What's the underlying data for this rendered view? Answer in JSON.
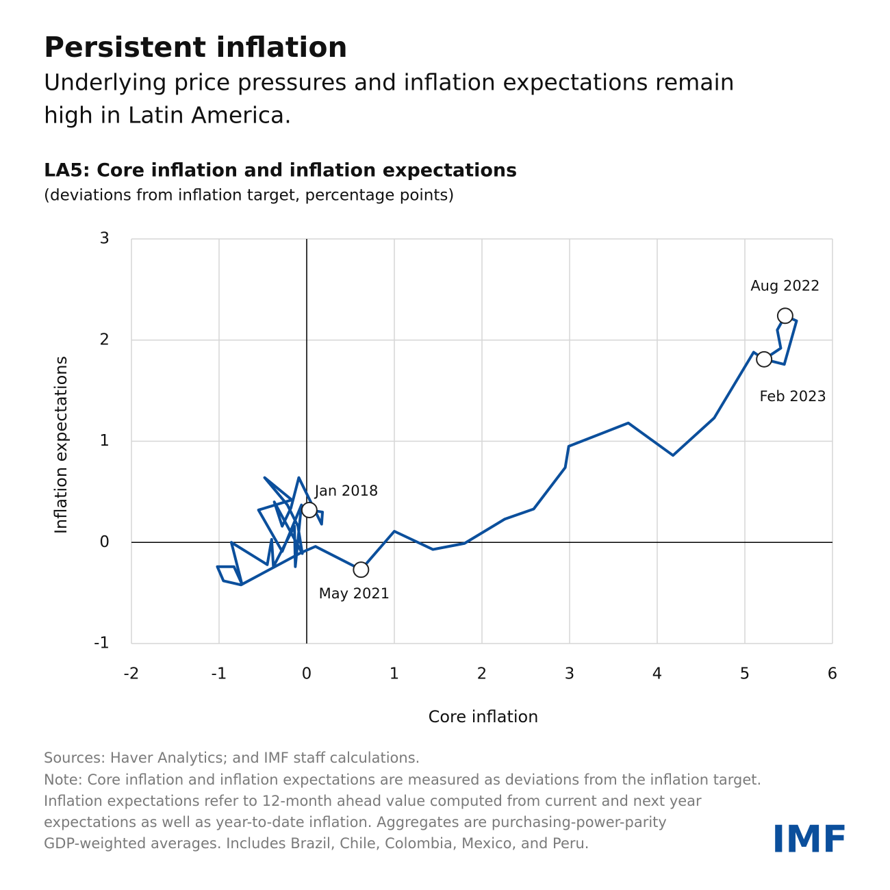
{
  "header": {
    "title": "Persistent inflation",
    "subtitle": [
      "Underlying price pressures and inflation expectations remain",
      "high in Latin America."
    ]
  },
  "chart_data": {
    "type": "line",
    "title": "LA5: Core inflation and inflation expectations",
    "subtitle": "(deviations from inflation target, percentage points)",
    "x_label": "Core inflation",
    "y_label": "Inflation expectations",
    "color": "#0b4f9c",
    "grid": true,
    "xlim": [
      -2,
      6
    ],
    "ylim": [
      -1,
      3
    ],
    "xticks": [
      -2,
      -1,
      0,
      1,
      2,
      3,
      4,
      5,
      6
    ],
    "yticks": [
      -1,
      0,
      1,
      2,
      3
    ],
    "x": [
      0.03,
      0.18,
      0.17,
      -0.09,
      -0.18,
      -0.28,
      -0.37,
      -0.05,
      -0.1,
      -0.22,
      -0.48,
      -0.17,
      -0.55,
      -0.28,
      -0.06,
      -0.13,
      -0.14,
      -0.38,
      -0.4,
      -0.45,
      -0.86,
      -0.74,
      -0.83,
      -1.02,
      -0.95,
      -0.75,
      -0.06,
      0.1,
      0.62,
      1.0,
      1.44,
      1.8,
      2.26,
      2.59,
      2.95,
      2.99,
      3.67,
      4.18,
      4.65,
      5.1,
      5.22,
      5.41,
      5.37,
      5.46,
      5.59,
      5.45,
      5.22
    ],
    "y": [
      0.32,
      0.3,
      0.18,
      0.64,
      0.34,
      0.16,
      0.4,
      -0.11,
      0.16,
      0.37,
      0.64,
      0.42,
      0.32,
      -0.09,
      0.37,
      -0.24,
      0.16,
      -0.24,
      0.03,
      -0.22,
      0.0,
      -0.41,
      -0.24,
      -0.24,
      -0.38,
      -0.42,
      -0.1,
      -0.04,
      -0.27,
      0.11,
      -0.07,
      -0.01,
      0.23,
      0.33,
      0.74,
      0.95,
      1.18,
      0.86,
      1.23,
      1.88,
      1.81,
      1.92,
      2.1,
      2.24,
      2.19,
      1.76,
      1.81
    ],
    "annotations": [
      {
        "text": "Jan 2018",
        "x": 0.03,
        "y": 0.32,
        "placement": "above-right"
      },
      {
        "text": "May 2021",
        "x": 0.62,
        "y": -0.27,
        "placement": "below"
      },
      {
        "text": "Aug 2022",
        "x": 5.46,
        "y": 2.24,
        "placement": "above"
      },
      {
        "text": "Feb 2023",
        "x": 5.22,
        "y": 1.81,
        "placement": "below-right"
      }
    ]
  },
  "footer": {
    "sources": "Sources: Haver Analytics; and IMF staff calculations.",
    "note": [
      "Note: Core inflation and inflation expectations are measured as deviations from the inflation target.",
      "Inflation expectations refer to 12-month ahead value computed from current and next year",
      "expectations as well as year-to-date inflation. Aggregates are purchasing-power-parity",
      "GDP-weighted averages. Includes Brazil, Chile, Colombia, Mexico, and Peru."
    ],
    "logo": "IMF"
  }
}
